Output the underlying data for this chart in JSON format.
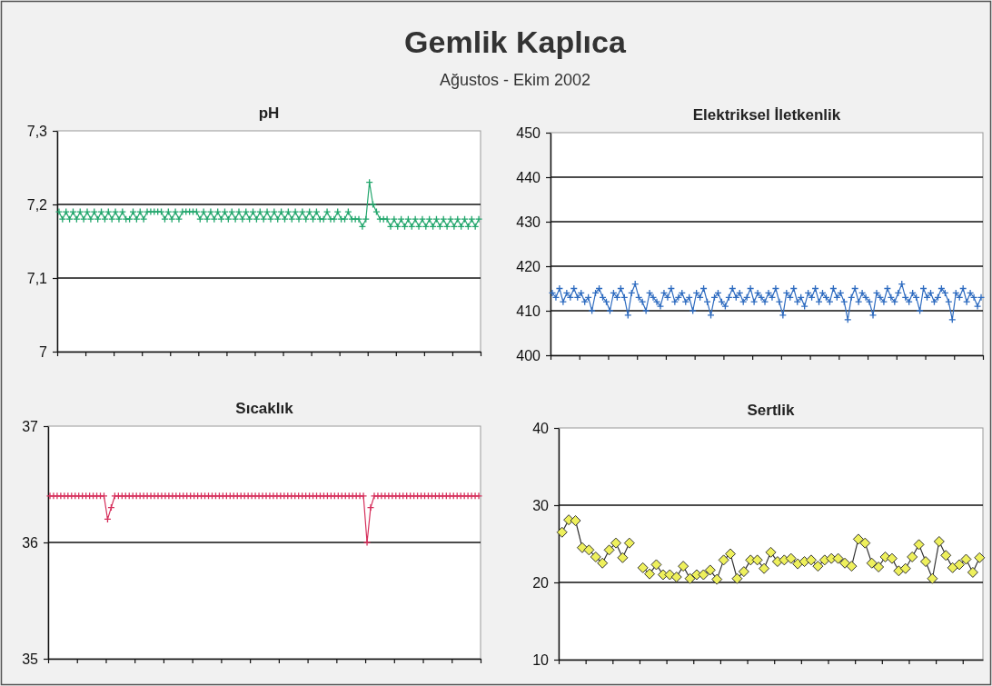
{
  "chart_data": [
    {
      "type": "other",
      "title": "Gemlik Kaplıca",
      "subtitle": "Ağustos - Ekim 2002"
    },
    {
      "type": "line",
      "title": "pH",
      "marker": "cross",
      "grid": "y",
      "tick_labels": "y",
      "categories": [
        null,
        null,
        null,
        null,
        null,
        null,
        null,
        null,
        null,
        null,
        null,
        null,
        null,
        null,
        null,
        null,
        null,
        null,
        null,
        null,
        null,
        null,
        null,
        null,
        null,
        null,
        null,
        null,
        null,
        null,
        null,
        null,
        null,
        null,
        null,
        null,
        null,
        null,
        null,
        null,
        null,
        null,
        null,
        null,
        null,
        null,
        null,
        null,
        null,
        null,
        null,
        null,
        null,
        null,
        null,
        null,
        null,
        null,
        null,
        null,
        null,
        null,
        null,
        null,
        null,
        null,
        null,
        null,
        null,
        null,
        null,
        null,
        null,
        null,
        null,
        null,
        null,
        null,
        null,
        null,
        null,
        null,
        null,
        null,
        null,
        null,
        null,
        null,
        null,
        null,
        null,
        null,
        null,
        null,
        null,
        null,
        null,
        null,
        null,
        null,
        null,
        null,
        null,
        null,
        null,
        null,
        null,
        null,
        null,
        null,
        null,
        null,
        null,
        null,
        null,
        null,
        null,
        null,
        null,
        null
      ],
      "series": [
        {
          "color": "#22a66c",
          "values": [
            7.19,
            7.18,
            7.19,
            7.18,
            7.19,
            7.18,
            7.19,
            7.18,
            7.19,
            7.18,
            7.19,
            7.18,
            7.19,
            7.18,
            7.19,
            7.18,
            7.19,
            7.18,
            7.19,
            7.18,
            7.18,
            7.19,
            7.18,
            7.19,
            7.18,
            7.19,
            7.19,
            7.19,
            7.19,
            7.19,
            7.18,
            7.19,
            7.18,
            7.19,
            7.18,
            7.19,
            7.19,
            7.19,
            7.19,
            7.19,
            7.18,
            7.19,
            7.18,
            7.19,
            7.18,
            7.19,
            7.18,
            7.19,
            7.18,
            7.19,
            7.18,
            7.19,
            7.18,
            7.19,
            7.18,
            7.19,
            7.18,
            7.19,
            7.18,
            7.19,
            7.18,
            7.19,
            7.18,
            7.19,
            7.18,
            7.19,
            7.18,
            7.19,
            7.18,
            7.19,
            7.18,
            7.19,
            7.18,
            7.19,
            7.18,
            7.18,
            7.19,
            7.18,
            7.18,
            7.19,
            7.18,
            7.18,
            7.19,
            7.18,
            7.18,
            7.18,
            7.17,
            7.18,
            7.23,
            7.2,
            7.19,
            7.18,
            7.18,
            7.18,
            7.17,
            7.18,
            7.17,
            7.18,
            7.17,
            7.18,
            7.17,
            7.18,
            7.17,
            7.18,
            7.17,
            7.18,
            7.17,
            7.18,
            7.17,
            7.18,
            7.17,
            7.18,
            7.17,
            7.18,
            7.17,
            7.18,
            7.17,
            7.18,
            7.17,
            7.18
          ]
        }
      ],
      "ylim": [
        7,
        7.3
      ],
      "yticks": [
        7,
        {
          "value": 7.1,
          "label": "7,1"
        },
        {
          "value": 7.2,
          "label": "7,2"
        },
        {
          "value": 7.3,
          "label": "7,3"
        }
      ]
    },
    {
      "type": "line",
      "title": "Elektriksel İletkenlik",
      "marker": "cross",
      "grid": "y",
      "tick_labels": "y",
      "categories": [
        null,
        null,
        null,
        null,
        null,
        null,
        null,
        null,
        null,
        null,
        null,
        null,
        null,
        null,
        null,
        null,
        null,
        null,
        null,
        null,
        null,
        null,
        null,
        null,
        null,
        null,
        null,
        null,
        null,
        null,
        null,
        null,
        null,
        null,
        null,
        null,
        null,
        null,
        null,
        null,
        null,
        null,
        null,
        null,
        null,
        null,
        null,
        null,
        null,
        null,
        null,
        null,
        null,
        null,
        null,
        null,
        null,
        null,
        null,
        null,
        null,
        null,
        null,
        null,
        null,
        null,
        null,
        null,
        null,
        null,
        null,
        null,
        null,
        null,
        null,
        null,
        null,
        null,
        null,
        null,
        null,
        null,
        null,
        null,
        null,
        null,
        null,
        null,
        null,
        null,
        null,
        null,
        null,
        null,
        null,
        null,
        null,
        null,
        null,
        null,
        null,
        null,
        null,
        null,
        null,
        null,
        null,
        null,
        null,
        null,
        null,
        null,
        null,
        null,
        null,
        null,
        null,
        null,
        null,
        null
      ],
      "series": [
        {
          "color": "#2f6cc0",
          "values": [
            414,
            413,
            415,
            412,
            414,
            413,
            415,
            413,
            414,
            412,
            413,
            410,
            414,
            415,
            413,
            412,
            410,
            414,
            413,
            415,
            413,
            409,
            414,
            416,
            413,
            412,
            410,
            414,
            413,
            412,
            411,
            414,
            413,
            415,
            412,
            413,
            414,
            412,
            413,
            410,
            414,
            413,
            415,
            412,
            409,
            413,
            414,
            412,
            411,
            413,
            415,
            413,
            414,
            412,
            413,
            415,
            412,
            414,
            413,
            412,
            414,
            413,
            415,
            412,
            409,
            414,
            413,
            415,
            412,
            413,
            411,
            414,
            413,
            415,
            412,
            414,
            413,
            412,
            415,
            413,
            414,
            412,
            408,
            413,
            415,
            412,
            414,
            413,
            412,
            409,
            414,
            413,
            412,
            415,
            413,
            412,
            414,
            416,
            413,
            412,
            414,
            413,
            410,
            415,
            413,
            414,
            412,
            413,
            415,
            414,
            412,
            408,
            414,
            413,
            415,
            412,
            414,
            413,
            411,
            413
          ]
        }
      ],
      "ylim": [
        400,
        450
      ],
      "yticks": [
        400,
        410,
        420,
        430,
        440,
        450
      ]
    },
    {
      "type": "line",
      "title": "Sıcaklık",
      "marker": "cross",
      "grid": "y",
      "tick_labels": "y",
      "categories": [
        null,
        null,
        null,
        null,
        null,
        null,
        null,
        null,
        null,
        null,
        null,
        null,
        null,
        null,
        null,
        null,
        null,
        null,
        null,
        null,
        null,
        null,
        null,
        null,
        null,
        null,
        null,
        null,
        null,
        null,
        null,
        null,
        null,
        null,
        null,
        null,
        null,
        null,
        null,
        null,
        null,
        null,
        null,
        null,
        null,
        null,
        null,
        null,
        null,
        null,
        null,
        null,
        null,
        null,
        null,
        null,
        null,
        null,
        null,
        null,
        null,
        null,
        null,
        null,
        null,
        null,
        null,
        null,
        null,
        null,
        null,
        null,
        null,
        null,
        null,
        null,
        null,
        null,
        null,
        null,
        null,
        null,
        null,
        null,
        null,
        null,
        null,
        null,
        null,
        null,
        null,
        null,
        null,
        null,
        null,
        null,
        null,
        null,
        null,
        null,
        null,
        null,
        null,
        null,
        null,
        null,
        null,
        null,
        null,
        null,
        null,
        null,
        null,
        null,
        null,
        null,
        null,
        null,
        null,
        null
      ],
      "series": [
        {
          "color": "#d6305c",
          "values": [
            36.4,
            36.4,
            36.4,
            36.4,
            36.4,
            36.4,
            36.4,
            36.4,
            36.4,
            36.4,
            36.4,
            36.4,
            36.4,
            36.4,
            36.4,
            36.4,
            36.2,
            36.3,
            36.4,
            36.4,
            36.4,
            36.4,
            36.4,
            36.4,
            36.4,
            36.4,
            36.4,
            36.4,
            36.4,
            36.4,
            36.4,
            36.4,
            36.4,
            36.4,
            36.4,
            36.4,
            36.4,
            36.4,
            36.4,
            36.4,
            36.4,
            36.4,
            36.4,
            36.4,
            36.4,
            36.4,
            36.4,
            36.4,
            36.4,
            36.4,
            36.4,
            36.4,
            36.4,
            36.4,
            36.4,
            36.4,
            36.4,
            36.4,
            36.4,
            36.4,
            36.4,
            36.4,
            36.4,
            36.4,
            36.4,
            36.4,
            36.4,
            36.4,
            36.4,
            36.4,
            36.4,
            36.4,
            36.4,
            36.4,
            36.4,
            36.4,
            36.4,
            36.4,
            36.4,
            36.4,
            36.4,
            36.4,
            36.4,
            36.4,
            36.4,
            36.4,
            36.4,
            36.4,
            36.0,
            36.3,
            36.4,
            36.4,
            36.4,
            36.4,
            36.4,
            36.4,
            36.4,
            36.4,
            36.4,
            36.4,
            36.4,
            36.4,
            36.4,
            36.4,
            36.4,
            36.4,
            36.4,
            36.4,
            36.4,
            36.4,
            36.4,
            36.4,
            36.4,
            36.4,
            36.4,
            36.4,
            36.4,
            36.4,
            36.4,
            36.4
          ]
        }
      ],
      "ylim": [
        35,
        37
      ],
      "yticks": [
        35,
        36,
        37
      ]
    },
    {
      "type": "line",
      "title": "Sertlik",
      "marker": "diamond",
      "grid": "y",
      "tick_labels": "y",
      "categories": [
        null,
        null,
        null,
        null,
        null,
        null,
        null,
        null,
        null,
        null,
        null,
        null,
        null,
        null,
        null,
        null,
        null,
        null,
        null,
        null,
        null,
        null,
        null,
        null,
        null,
        null,
        null,
        null,
        null,
        null,
        null,
        null,
        null,
        null,
        null,
        null,
        null,
        null,
        null,
        null,
        null,
        null,
        null,
        null,
        null,
        null,
        null,
        null,
        null,
        null,
        null,
        null,
        null,
        null,
        null,
        null,
        null,
        null,
        null,
        null,
        null,
        null,
        null
      ],
      "series": [
        {
          "color": "#333333",
          "colors": [
            "#eef05c",
            "#eef05c",
            "#eef05c",
            "#eef05c",
            "#eef05c",
            "#eef05c",
            "#eef05c",
            "#eef05c",
            "#eef05c",
            "#eef05c",
            "#eef05c",
            null,
            "#eef05c",
            "#eef05c",
            "#eef05c",
            "#eef05c",
            "#eef05c",
            "#eef05c",
            "#eef05c",
            "#eef05c",
            "#eef05c",
            "#eef05c",
            "#eef05c",
            "#eef05c",
            "#eef05c",
            "#eef05c",
            "#eef05c",
            "#eef05c",
            "#eef05c",
            "#eef05c",
            "#eef05c",
            "#eef05c",
            "#eef05c",
            "#eef05c",
            "#eef05c",
            "#eef05c",
            "#eef05c",
            "#eef05c",
            "#eef05c",
            "#eef05c",
            "#eef05c",
            "#eef05c",
            "#eef05c",
            "#eef05c",
            "#eef05c",
            "#eef05c",
            "#eef05c",
            "#eef05c",
            "#eef05c",
            "#eef05c",
            "#eef05c",
            "#eef05c",
            "#eef05c",
            "#eef05c",
            "#eef05c",
            "#eef05c",
            "#eef05c",
            "#eef05c",
            "#eef05c",
            "#eef05c",
            "#eef05c",
            "#eef05c",
            "#eef05c"
          ],
          "values": [
            26.5,
            28.1,
            28.0,
            24.5,
            24.2,
            23.3,
            22.5,
            24.2,
            25.1,
            23.2,
            25.1,
            null,
            21.9,
            21.1,
            22.3,
            21.0,
            21.0,
            20.7,
            22.1,
            20.5,
            21.0,
            21.0,
            21.6,
            20.4,
            22.9,
            23.7,
            20.5,
            21.4,
            22.9,
            22.9,
            21.8,
            23.9,
            22.7,
            22.9,
            23.1,
            22.4,
            22.7,
            22.9,
            22.1,
            22.9,
            23.1,
            23.1,
            22.5,
            22.1,
            25.6,
            25.1,
            22.5,
            22.0,
            23.3,
            23.1,
            21.5,
            21.8,
            23.3,
            24.9,
            22.7,
            20.5,
            25.3,
            23.5,
            21.9,
            22.3,
            23.0,
            21.3,
            23.2
          ]
        }
      ],
      "ylim": [
        10,
        40
      ],
      "yticks": [
        10,
        20,
        30,
        40
      ]
    }
  ]
}
